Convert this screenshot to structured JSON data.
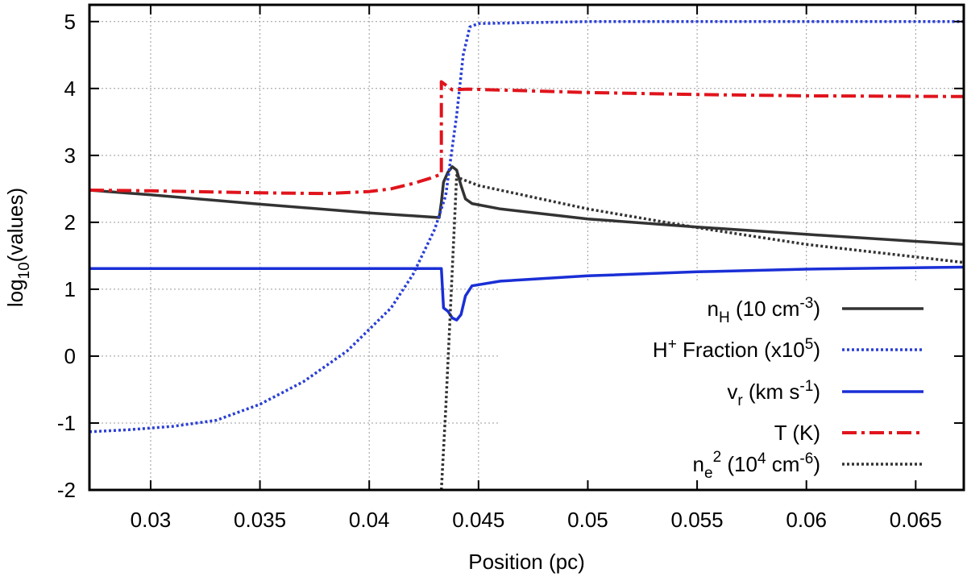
{
  "chart_data": {
    "type": "line",
    "xlabel": "Position (pc)",
    "ylabel": {
      "base": "log",
      "sub": "10",
      "rest": "(values)"
    },
    "xlim": [
      0.0272,
      0.0672
    ],
    "ylim": [
      -2,
      5.25
    ],
    "xticks": [
      0.03,
      0.035,
      0.04,
      0.045,
      0.05,
      0.055,
      0.06,
      0.065
    ],
    "xtick_labels": [
      "0.03",
      "0.035",
      "0.04",
      "0.045",
      "0.05",
      "0.055",
      "0.06",
      "0.065"
    ],
    "yticks": [
      -2,
      -1,
      0,
      1,
      2,
      3,
      4,
      5
    ],
    "ytick_labels": [
      "-2",
      "-1",
      "0",
      "1",
      "2",
      "3",
      "4",
      "5"
    ],
    "grid": true,
    "legend_position": "bottom-right",
    "series": [
      {
        "key": "nH",
        "legend": {
          "main": "n",
          "sub": "H",
          "mid": " (10 cm",
          "sup": "-3",
          "end": ")"
        },
        "color": "#333333",
        "dash": "solid",
        "points": [
          [
            0.0272,
            2.48
          ],
          [
            0.03,
            2.41
          ],
          [
            0.035,
            2.27
          ],
          [
            0.04,
            2.14
          ],
          [
            0.0432,
            2.07
          ],
          [
            0.0433,
            2.3
          ],
          [
            0.0434,
            2.6
          ],
          [
            0.0436,
            2.75
          ],
          [
            0.0438,
            2.83
          ],
          [
            0.044,
            2.78
          ],
          [
            0.0442,
            2.55
          ],
          [
            0.0444,
            2.35
          ],
          [
            0.0447,
            2.28
          ],
          [
            0.046,
            2.2
          ],
          [
            0.05,
            2.05
          ],
          [
            0.055,
            1.93
          ],
          [
            0.06,
            1.82
          ],
          [
            0.0672,
            1.67
          ]
        ]
      },
      {
        "key": "Hplus",
        "legend": {
          "main": "H",
          "sup": "+",
          "mid": " Fraction (x10",
          "sup2": "5",
          "end": ")"
        },
        "color": "#2a3fd6",
        "dash": "dotted",
        "points": [
          [
            0.0272,
            -1.13
          ],
          [
            0.029,
            -1.1
          ],
          [
            0.031,
            -1.05
          ],
          [
            0.033,
            -0.96
          ],
          [
            0.035,
            -0.72
          ],
          [
            0.037,
            -0.38
          ],
          [
            0.039,
            0.08
          ],
          [
            0.041,
            0.72
          ],
          [
            0.042,
            1.22
          ],
          [
            0.043,
            1.9
          ],
          [
            0.0435,
            2.4
          ],
          [
            0.044,
            3.6
          ],
          [
            0.0443,
            4.5
          ],
          [
            0.0446,
            4.92
          ],
          [
            0.045,
            4.97
          ],
          [
            0.05,
            5.0
          ],
          [
            0.0672,
            5.0
          ]
        ]
      },
      {
        "key": "vr",
        "legend": {
          "main": "v",
          "sub": "r",
          "mid": " (km s",
          "sup": "-1",
          "end": ")"
        },
        "color": "#1a2fd6",
        "dash": "solid",
        "points": [
          [
            0.0272,
            1.31
          ],
          [
            0.043,
            1.31
          ],
          [
            0.0433,
            1.31
          ],
          [
            0.0434,
            0.72
          ],
          [
            0.0436,
            0.67
          ],
          [
            0.0438,
            0.57
          ],
          [
            0.044,
            0.54
          ],
          [
            0.0442,
            0.62
          ],
          [
            0.0444,
            0.9
          ],
          [
            0.0447,
            1.05
          ],
          [
            0.046,
            1.12
          ],
          [
            0.05,
            1.2
          ],
          [
            0.055,
            1.26
          ],
          [
            0.06,
            1.3
          ],
          [
            0.0672,
            1.33
          ]
        ]
      },
      {
        "key": "T",
        "legend": {
          "main": "T (K)"
        },
        "color": "#e0141c",
        "dash": "dashdot",
        "points": [
          [
            0.0272,
            2.48
          ],
          [
            0.03,
            2.47
          ],
          [
            0.035,
            2.44
          ],
          [
            0.038,
            2.43
          ],
          [
            0.04,
            2.46
          ],
          [
            0.041,
            2.5
          ],
          [
            0.042,
            2.58
          ],
          [
            0.0428,
            2.66
          ],
          [
            0.0433,
            2.72
          ],
          [
            0.0433,
            4.1
          ],
          [
            0.0438,
            3.98
          ],
          [
            0.0445,
            3.99
          ],
          [
            0.05,
            3.94
          ],
          [
            0.055,
            3.91
          ],
          [
            0.06,
            3.89
          ],
          [
            0.0672,
            3.88
          ]
        ]
      },
      {
        "key": "ne2",
        "legend": {
          "main": "n",
          "sub": "e",
          "sup": "2",
          "mid": " (10",
          "sup2": "4",
          "mid2": " cm",
          "sup3": "-6",
          "end": ")"
        },
        "color": "#333333",
        "dash": "dotted",
        "points": [
          [
            0.0433,
            -2.0
          ],
          [
            0.0435,
            -0.8
          ],
          [
            0.0437,
            0.6
          ],
          [
            0.0439,
            2.0
          ],
          [
            0.044,
            2.7
          ],
          [
            0.0442,
            2.65
          ],
          [
            0.045,
            2.55
          ],
          [
            0.05,
            2.2
          ],
          [
            0.055,
            1.92
          ],
          [
            0.06,
            1.67
          ],
          [
            0.0672,
            1.4
          ]
        ]
      }
    ]
  }
}
